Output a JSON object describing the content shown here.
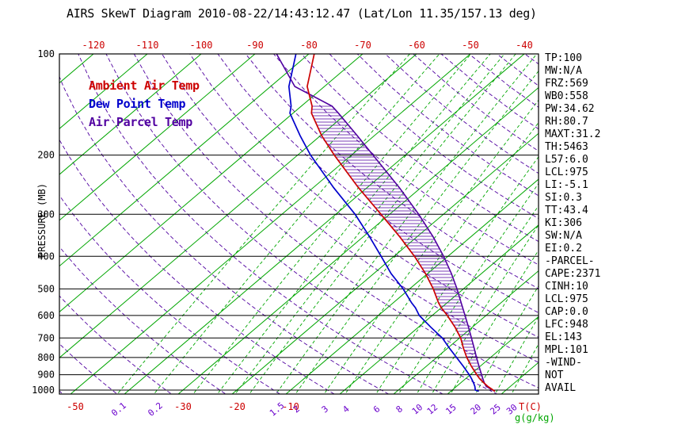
{
  "title": "AIRS SkewT Diagram 2010-08-22/14:43:12.47 (Lat/Lon 11.35/157.13 deg)",
  "legend": [
    {
      "label": "Ambient Air Temp",
      "color": "#cc0000"
    },
    {
      "label": "Dew Point Temp",
      "color": "#0000cc"
    },
    {
      "label": "Air Parcel Temp",
      "color": "#5000a0"
    }
  ],
  "axes": {
    "pressure_label": "PRESSURE (MB)",
    "pressure_ticks": [
      100,
      200,
      300,
      400,
      500,
      600,
      700,
      800,
      900,
      1000
    ],
    "top_temp_labels": [
      -120,
      -110,
      -100,
      -90,
      -80,
      -70,
      -60,
      -50,
      -40
    ],
    "bottom_temp_labels": [
      -50,
      -30,
      -20,
      -10
    ],
    "temp_unit_label": "T(C)",
    "mixing_unit_label": "g(g/kg)",
    "mixing_labels": [
      0.1,
      0.2,
      1.5,
      2,
      3,
      4,
      6,
      8,
      10,
      12,
      15,
      20,
      25,
      30
    ]
  },
  "stats": [
    "TP:100",
    "MW:N/A",
    "FRZ:569",
    "WB0:558",
    "PW:34.62",
    "RH:80.7",
    "MAXT:31.2",
    "TH:5463",
    "L57:6.0",
    "LCL:975",
    "LI:-5.1",
    "SI:0.3",
    "TT:43.4",
    "KI:306",
    "SW:N/A",
    "EI:0.2",
    "-PARCEL-",
    "CAPE:2371",
    "CINH:10",
    "LCL:975",
    "CAP:0.0",
    "LFC:948",
    "EL:143",
    "MPL:101",
    "-WIND-",
    "NOT",
    "AVAIL"
  ],
  "colors": {
    "temp_curve": "#cc0000",
    "dewpoint_curve": "#0000cc",
    "parcel_curve": "#5000a0",
    "isotherm": "#00a600",
    "mixing_ratio": "#00a600",
    "dry_adiabat": "#5000a0",
    "isobar": "#000000",
    "frame": "#000000",
    "hatch": "#5000a0",
    "temp_labels": "#cc0000",
    "mixing_labels": "#6a00cc",
    "unit_mixing_label": "#00a600"
  },
  "chart_data": {
    "type": "line",
    "subtype": "skew_t_log_p",
    "title": "AIRS SkewT Diagram 2010-08-22/14:43:12.47 (Lat/Lon 11.35/157.13 deg)",
    "xlabel": "T(C)",
    "ylabel": "PRESSURE (MB)",
    "pressure_range_mb": [
      100,
      1028
    ],
    "isotherms_c": {
      "min": -160,
      "max": 40,
      "step": 10
    },
    "mixing_ratio_lines_gkg": [
      0.1,
      0.2,
      0.4,
      0.6,
      0.8,
      1,
      1.5,
      2,
      3,
      4,
      6,
      8,
      10,
      12,
      15,
      20,
      25,
      30
    ],
    "dry_adiabats_k": {
      "min": 220,
      "max": 460,
      "step": 10
    },
    "sounding": {
      "pressure": [
        1008,
        1000,
        975,
        950,
        925,
        900,
        850,
        800,
        750,
        700,
        650,
        600,
        569,
        550,
        500,
        450,
        400,
        350,
        300,
        250,
        200,
        175,
        150,
        143,
        125,
        100
      ],
      "temp": [
        28.2,
        27.6,
        25.8,
        24.2,
        22.6,
        21.2,
        18.4,
        15.6,
        12.9,
        10.2,
        6.8,
        2.8,
        0.0,
        -1.6,
        -5.6,
        -10.4,
        -16.2,
        -23.2,
        -31.6,
        -41.6,
        -53.2,
        -59.8,
        -66.6,
        -68.0,
        -73.2,
        -79.0
      ],
      "dewpoint": [
        25.2,
        24.3,
        23.4,
        22.3,
        21.1,
        19.8,
        16.9,
        13.7,
        10.3,
        6.8,
        2.3,
        -2.4,
        -4.8,
        -6.6,
        -11.2,
        -16.8,
        -22.4,
        -28.8,
        -36.4,
        -46.2,
        -57.6,
        -63.8,
        -70.6,
        -71.9,
        -76.6,
        -82.4
      ]
    },
    "parcel": {
      "pressure": [
        1008,
        1000,
        975,
        950,
        925,
        900,
        850,
        800,
        750,
        700,
        650,
        600,
        550,
        500,
        450,
        400,
        350,
        300,
        250,
        200,
        175,
        150,
        143,
        125,
        100
      ],
      "temp": [
        28.2,
        27.5,
        25.5,
        24.3,
        23.2,
        22.1,
        19.8,
        17.4,
        14.9,
        12.2,
        9.3,
        6.1,
        2.6,
        -1.2,
        -5.6,
        -10.8,
        -17.0,
        -24.6,
        -34.0,
        -46.0,
        -53.2,
        -61.6,
        -64.3,
        -75.5,
        -86.0
      ]
    },
    "cape_region": {
      "bottom_mb": 948,
      "top_mb": 143
    },
    "grid": "on",
    "legend_position": "upper-left"
  }
}
